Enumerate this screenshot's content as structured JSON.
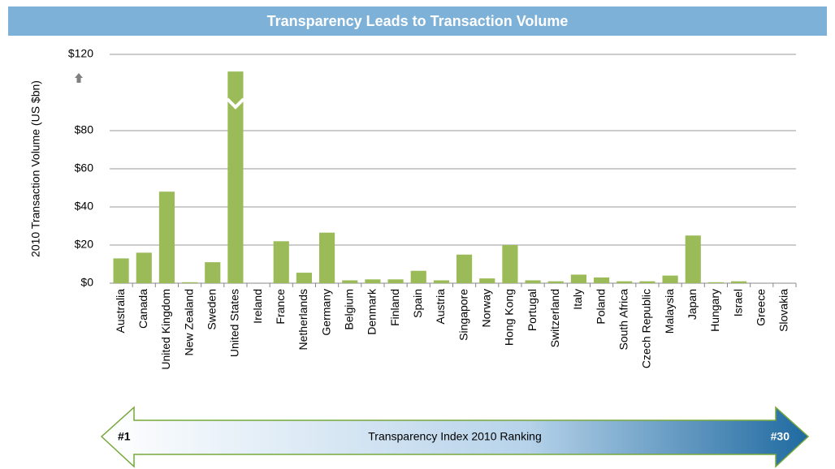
{
  "chart_data": {
    "type": "bar",
    "title": "Transparency Leads to Transaction Volume",
    "y_label": "2010 Transaction Volume (US $bn)",
    "categories": [
      "Australia",
      "Canada",
      "United Kingdom",
      "New Zealand",
      "Sweden",
      "United States",
      "Ireland",
      "France",
      "Netherlands",
      "Germany",
      "Belgium",
      "Denmark",
      "Finland",
      "Spain",
      "Austria",
      "Singapore",
      "Norway",
      "Hong Kong",
      "Portugal",
      "Switzerland",
      "Italy",
      "Poland",
      "South Africa",
      "Czech Republic",
      "Malaysia",
      "Japan",
      "Hungary",
      "Israel",
      "Greece",
      "Slovakia"
    ],
    "values": [
      13,
      16,
      48,
      0.5,
      11,
      111,
      0,
      22,
      5.5,
      26.5,
      1.5,
      2,
      2,
      6.5,
      1.5,
      15,
      2.5,
      20,
      1.5,
      1,
      4.5,
      3,
      1,
      1,
      4,
      25,
      0.5,
      1,
      0,
      0
    ],
    "color": "#9bbb59",
    "ylim": [
      0,
      120
    ],
    "yticks": [
      {
        "value": 0,
        "label": "$0"
      },
      {
        "value": 20,
        "label": "$20"
      },
      {
        "value": 40,
        "label": "$40"
      },
      {
        "value": 60,
        "label": "$60"
      },
      {
        "value": 80,
        "label": "$80"
      },
      {
        "value": 120,
        "label": "$120"
      }
    ],
    "grid": true,
    "annotations": {
      "left": "#1",
      "label": "Transparency Index 2010 Ranking",
      "right": "#30"
    }
  }
}
